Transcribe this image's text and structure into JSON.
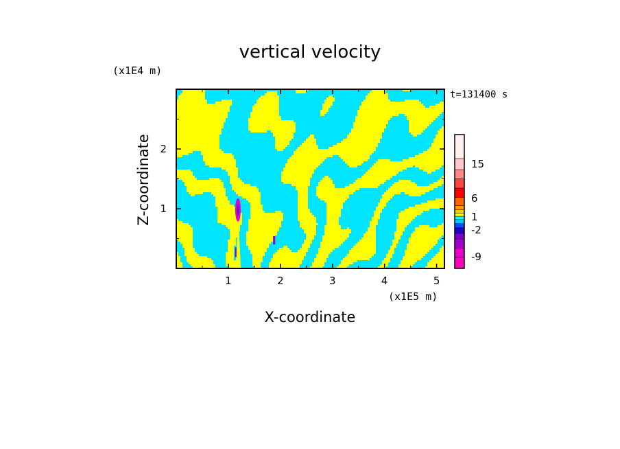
{
  "chart_data": {
    "type": "heatmap",
    "title": "vertical velocity",
    "xlabel": "X-coordinate",
    "ylabel": "Z-coordinate",
    "x_unit": "(x1E5 m)",
    "y_unit": "(x1E4 m)",
    "time_label": "t=131400 s",
    "xlim": [
      0,
      5.15
    ],
    "ylim": [
      0,
      3.0
    ],
    "x_ticks": [
      "1",
      "2",
      "3",
      "4",
      "5"
    ],
    "y_ticks": [
      "1",
      "2"
    ],
    "grid": false,
    "field_colors": {
      "positive_band": "#ffff00",
      "negative_band": "#00e5ff"
    },
    "colorbar": {
      "labels": [
        "15",
        "6",
        "1",
        "-2",
        "-9"
      ],
      "bins": [
        {
          "color": "#ff00bb"
        },
        {
          "color": "#e600cc"
        },
        {
          "color": "#a000c8"
        },
        {
          "color": "#7a00d2"
        },
        {
          "color": "#2200c8"
        },
        {
          "color": "#0050ff"
        },
        {
          "color": "#00c8ff"
        },
        {
          "color": "#00ffff"
        },
        {
          "color": "#ffff00"
        },
        {
          "color": "#f0d000"
        },
        {
          "color": "#ff9900"
        },
        {
          "color": "#ff6600"
        },
        {
          "color": "#ff0000"
        },
        {
          "color": "#ff4444"
        },
        {
          "color": "#ff8888"
        },
        {
          "color": "#ffc8c8"
        },
        {
          "color": "#fff0f0"
        }
      ]
    }
  }
}
